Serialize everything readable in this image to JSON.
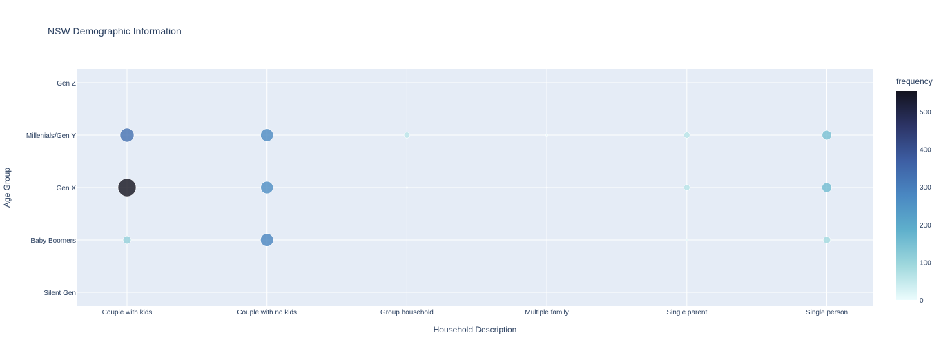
{
  "chart_data": {
    "type": "scatter",
    "title": "NSW Demographic Information",
    "xlabel": "Household Description",
    "ylabel": "Age Group",
    "categories_x": [
      "Couple with kids",
      "Couple with no kids",
      "Group household",
      "Multiple family",
      "Single parent",
      "Single person"
    ],
    "categories_y": [
      "Silent Gen",
      "Baby Boomers",
      "Gen X",
      "Millenials/Gen Y",
      "Gen Z"
    ],
    "grid": true,
    "colorbar": {
      "title": "frequency",
      "range": [
        0,
        555
      ],
      "ticks": [
        0,
        100,
        200,
        300,
        400,
        500
      ],
      "colors": [
        "#ecfcfd",
        "#9fd8dd",
        "#5fb0cc",
        "#4a88c2",
        "#3d5ea3",
        "#2c3466",
        "#13131e"
      ]
    },
    "points": [
      {
        "x": "Couple with kids",
        "y": "Gen Z",
        "frequency": 1
      },
      {
        "x": "Couple with no kids",
        "y": "Gen Z",
        "frequency": 2
      },
      {
        "x": "Group household",
        "y": "Gen Z",
        "frequency": 0
      },
      {
        "x": "Multiple family",
        "y": "Gen Z",
        "frequency": 0
      },
      {
        "x": "Single parent",
        "y": "Gen Z",
        "frequency": 0
      },
      {
        "x": "Single person",
        "y": "Gen Z",
        "frequency": 1
      },
      {
        "x": "Couple with kids",
        "y": "Millenials/Gen Y",
        "frequency": 330
      },
      {
        "x": "Couple with no kids",
        "y": "Millenials/Gen Y",
        "frequency": 275
      },
      {
        "x": "Group household",
        "y": "Millenials/Gen Y",
        "frequency": 60
      },
      {
        "x": "Multiple family",
        "y": "Millenials/Gen Y",
        "frequency": 8
      },
      {
        "x": "Single parent",
        "y": "Millenials/Gen Y",
        "frequency": 65
      },
      {
        "x": "Single person",
        "y": "Millenials/Gen Y",
        "frequency": 150
      },
      {
        "x": "Couple with kids",
        "y": "Gen X",
        "frequency": 555
      },
      {
        "x": "Couple with no kids",
        "y": "Gen X",
        "frequency": 265
      },
      {
        "x": "Group household",
        "y": "Gen X",
        "frequency": 5
      },
      {
        "x": "Multiple family",
        "y": "Gen X",
        "frequency": 4
      },
      {
        "x": "Single parent",
        "y": "Gen X",
        "frequency": 65
      },
      {
        "x": "Single person",
        "y": "Gen X",
        "frequency": 160
      },
      {
        "x": "Couple with kids",
        "y": "Baby Boomers",
        "frequency": 110
      },
      {
        "x": "Couple with no kids",
        "y": "Baby Boomers",
        "frequency": 285
      },
      {
        "x": "Group household",
        "y": "Baby Boomers",
        "frequency": 0
      },
      {
        "x": "Multiple family",
        "y": "Baby Boomers",
        "frequency": 1
      },
      {
        "x": "Single parent",
        "y": "Baby Boomers",
        "frequency": 8
      },
      {
        "x": "Single person",
        "y": "Baby Boomers",
        "frequency": 90
      },
      {
        "x": "Couple with kids",
        "y": "Silent Gen",
        "frequency": 0
      },
      {
        "x": "Couple with no kids",
        "y": "Silent Gen",
        "frequency": 0
      },
      {
        "x": "Group household",
        "y": "Silent Gen",
        "frequency": 0
      },
      {
        "x": "Multiple family",
        "y": "Silent Gen",
        "frequency": 0
      },
      {
        "x": "Single parent",
        "y": "Silent Gen",
        "frequency": 0
      },
      {
        "x": "Single person",
        "y": "Silent Gen",
        "frequency": 0
      }
    ]
  }
}
